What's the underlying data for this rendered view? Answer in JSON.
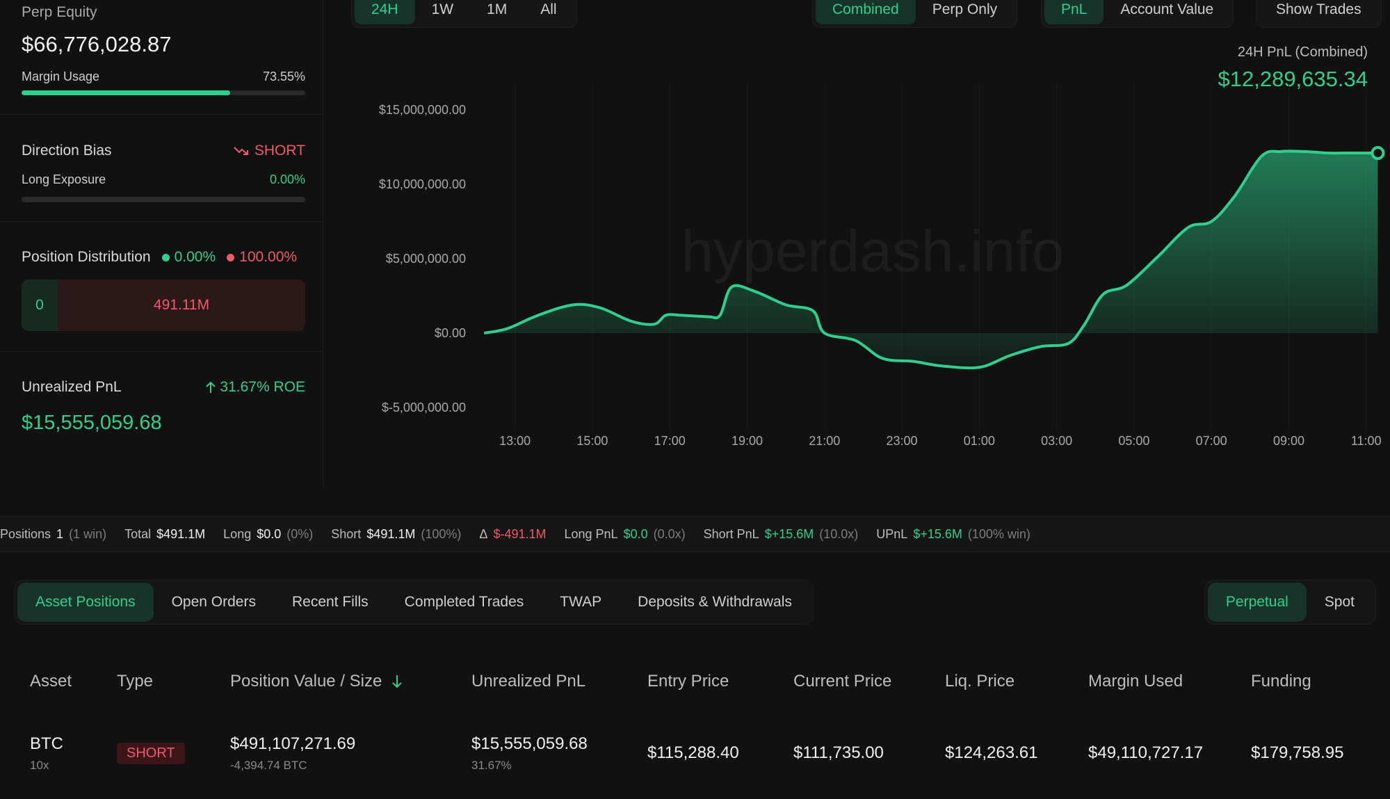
{
  "left": {
    "perp_equity_label": "Perp Equity",
    "perp_equity_value": "$66,776,028.87",
    "margin_usage_label": "Margin Usage",
    "margin_usage_value": "73.55%",
    "margin_usage_fraction": 0.7355,
    "direction_bias_label": "Direction Bias",
    "direction_bias_value": "SHORT",
    "long_exposure_label": "Long Exposure",
    "long_exposure_value": "0.00%",
    "position_distribution_label": "Position Distribution",
    "long_pct": "0.00%",
    "short_pct": "100.00%",
    "long_amount": "0",
    "short_amount": "491.11M",
    "unrealized_pnl_label": "Unrealized PnL",
    "roe": "31.67% ROE",
    "unrealized_pnl_value": "$15,555,059.68"
  },
  "range_tabs": {
    "items": [
      "24H",
      "1W",
      "1M",
      "All"
    ],
    "active": "24H"
  },
  "mode_tabs": {
    "items": [
      "Combined",
      "Perp Only"
    ],
    "active": "Combined"
  },
  "metric_tabs": {
    "items": [
      "PnL",
      "Account Value"
    ],
    "active": "PnL"
  },
  "show_trades_label": "Show Trades",
  "pnl_caption": "24H PnL (Combined)",
  "pnl_total": "$12,289,635.34",
  "watermark": "hyperdash.info",
  "colors": {
    "accent": "#2fd08f",
    "negative": "#ef5a6a",
    "background": "#111111"
  },
  "chart_data": {
    "type": "area",
    "y_ticks": [
      "$15,000,000.00",
      "$10,000,000.00",
      "$5,000,000.00",
      "$0.00",
      "$-5,000,000.00"
    ],
    "y_tick_values": [
      15000000,
      10000000,
      5000000,
      0,
      -5000000
    ],
    "x_ticks": [
      "13:00",
      "15:00",
      "17:00",
      "19:00",
      "21:00",
      "23:00",
      "01:00",
      "03:00",
      "05:00",
      "07:00",
      "09:00",
      "11:00"
    ],
    "ylim": [
      -5000000,
      15000000
    ],
    "x_hours": [
      12.2,
      12.8,
      13.6,
      14.5,
      15.2,
      16.0,
      16.6,
      16.9,
      17.3,
      18.0,
      18.3,
      18.6,
      19.2,
      20.0,
      20.7,
      21.0,
      21.8,
      22.5,
      23.3,
      24.0,
      25.0,
      25.8,
      26.6,
      27.3,
      27.7,
      28.2,
      28.8,
      29.6,
      30.4,
      31.0,
      31.6,
      32.3,
      32.8,
      33.4,
      34.0,
      34.5,
      35.3
    ],
    "values": [
      0,
      300000,
      1200000,
      1900000,
      1700000,
      800000,
      600000,
      1200000,
      1200000,
      1100000,
      1200000,
      3100000,
      2800000,
      1900000,
      1500000,
      0,
      -500000,
      -1700000,
      -1900000,
      -2200000,
      -2300000,
      -1500000,
      -900000,
      -700000,
      500000,
      2600000,
      3200000,
      5100000,
      7100000,
      7500000,
      9200000,
      11900000,
      12200000,
      12200000,
      12100000,
      12100000,
      12100000
    ],
    "last_point_marker": true
  },
  "stats": [
    {
      "label": "Positions",
      "value": "1",
      "note": "(1 win)",
      "color": "default"
    },
    {
      "label": "Total",
      "value": "$491.1M",
      "note": "",
      "color": "default"
    },
    {
      "label": "Long",
      "value": "$0.0",
      "note": "(0%)",
      "color": "default"
    },
    {
      "label": "Short",
      "value": "$491.1M",
      "note": "(100%)",
      "color": "default"
    },
    {
      "label": "Δ",
      "value": "$-491.1M",
      "note": "",
      "color": "red"
    },
    {
      "label": "Long PnL",
      "value": "$0.0",
      "note": "(0.0x)",
      "color": "green"
    },
    {
      "label": "Short PnL",
      "value": "$+15.6M",
      "note": "(10.0x)",
      "color": "green"
    },
    {
      "label": "UPnL",
      "value": "$+15.6M",
      "note": "(100% win)",
      "color": "green"
    }
  ],
  "bottom_tabs": {
    "items": [
      "Asset Positions",
      "Open Orders",
      "Recent Fills",
      "Completed Trades",
      "TWAP",
      "Deposits & Withdrawals"
    ],
    "active": "Asset Positions"
  },
  "product_tabs": {
    "items": [
      "Perpetual",
      "Spot"
    ],
    "active": "Perpetual"
  },
  "table": {
    "headers": {
      "asset": "Asset",
      "type": "Type",
      "position": "Position Value / Size",
      "upnl": "Unrealized PnL",
      "entry": "Entry Price",
      "current": "Current Price",
      "liq": "Liq. Price",
      "margin": "Margin Used",
      "funding": "Funding"
    },
    "row": {
      "asset": "BTC",
      "leverage": "10x",
      "type": "SHORT",
      "position_value": "$491,107,271.69",
      "size": "-4,394.74 BTC",
      "upnl": "$15,555,059.68",
      "upnl_pct": "31.67%",
      "entry": "$115,288.40",
      "current": "$111,735.00",
      "liq": "$124,263.61",
      "margin": "$49,110,727.17",
      "funding": "$179,758.95"
    }
  }
}
